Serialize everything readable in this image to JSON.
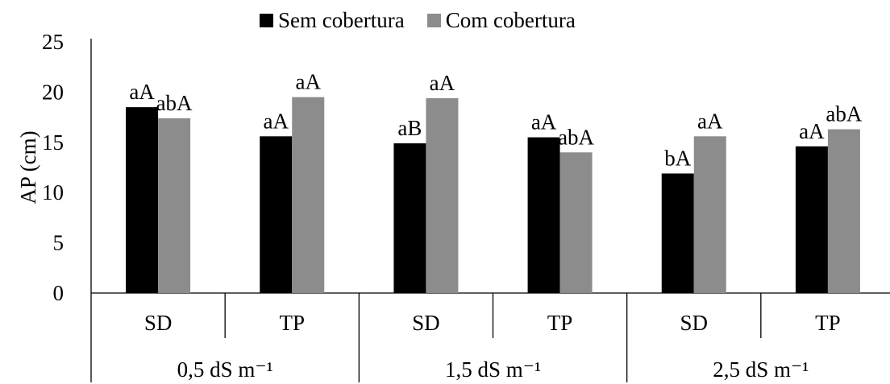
{
  "chart_data": {
    "type": "bar",
    "title": "",
    "xlabel": "",
    "ylabel": "AP (cm)",
    "ylim": [
      0,
      25
    ],
    "yticks": [
      0,
      5,
      10,
      15,
      20,
      25
    ],
    "grid": false,
    "legend_position": "top",
    "groups": [
      "0,5 dS m⁻¹",
      "1,5 dS m⁻¹",
      "2,5 dS m⁻¹"
    ],
    "categories": [
      "SD",
      "TP",
      "SD",
      "TP",
      "SD",
      "TP"
    ],
    "category_group_index": [
      0,
      0,
      1,
      1,
      2,
      2
    ],
    "series": [
      {
        "name": "Sem cobertura",
        "color": "#000000",
        "values": [
          18.5,
          15.6,
          14.9,
          15.5,
          11.9,
          14.6
        ],
        "labels": [
          "aA",
          "aA",
          "aB",
          "aA",
          "bA",
          "aA"
        ]
      },
      {
        "name": "Com cobertura",
        "color": "#8c8c8c",
        "values": [
          17.4,
          19.5,
          19.4,
          14.0,
          15.6,
          16.3
        ],
        "labels": [
          "abA",
          "aA",
          "aA",
          "abA",
          "aA",
          "abA"
        ]
      }
    ]
  }
}
